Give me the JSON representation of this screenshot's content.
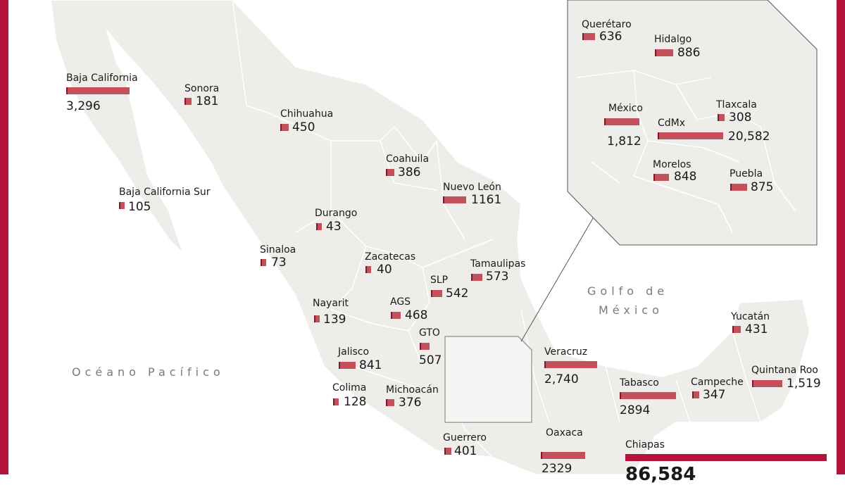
{
  "colors": {
    "frame": "#b5123a",
    "bar": "#c4505c",
    "land": "#efedea",
    "border": "#ffffff"
  },
  "oceans": {
    "pacific": "Océano Pacífico",
    "gulf_line1": "Golfo de",
    "gulf_line2": "México"
  },
  "states": [
    {
      "name": "Baja California",
      "value": "3,296",
      "amount": 3296
    },
    {
      "name": "Sonora",
      "value": "181",
      "amount": 181
    },
    {
      "name": "Chihuahua",
      "value": "450",
      "amount": 450
    },
    {
      "name": "Baja California Sur",
      "value": "105",
      "amount": 105
    },
    {
      "name": "Coahuila",
      "value": "386",
      "amount": 386
    },
    {
      "name": "Nuevo León",
      "value": "1161",
      "amount": 1161
    },
    {
      "name": "Durango",
      "value": "43",
      "amount": 43
    },
    {
      "name": "Sinaloa",
      "value": "73",
      "amount": 73
    },
    {
      "name": "Zacatecas",
      "value": "40",
      "amount": 40
    },
    {
      "name": "Tamaulipas",
      "value": "573",
      "amount": 573
    },
    {
      "name": "SLP",
      "value": "542",
      "amount": 542
    },
    {
      "name": "Nayarit",
      "value": "139",
      "amount": 139
    },
    {
      "name": "AGS",
      "value": "468",
      "amount": 468
    },
    {
      "name": "GTO",
      "value": "507",
      "amount": 507
    },
    {
      "name": "Jalisco",
      "value": "841",
      "amount": 841
    },
    {
      "name": "Colima",
      "value": "128",
      "amount": 128
    },
    {
      "name": "Michoacán",
      "value": "376",
      "amount": 376
    },
    {
      "name": "Guerrero",
      "value": "401",
      "amount": 401
    },
    {
      "name": "Veracruz",
      "value": "2,740",
      "amount": 2740
    },
    {
      "name": "Tabasco",
      "value": "2894",
      "amount": 2894
    },
    {
      "name": "Campeche",
      "value": "347",
      "amount": 347
    },
    {
      "name": "Yucatán",
      "value": "431",
      "amount": 431
    },
    {
      "name": "Quintana Roo",
      "value": "1,519",
      "amount": 1519
    },
    {
      "name": "Oaxaca",
      "value": "2329",
      "amount": 2329
    },
    {
      "name": "Chiapas",
      "value": "86,584",
      "amount": 86584
    }
  ],
  "inset": [
    {
      "name": "Querétaro",
      "value": "636",
      "amount": 636
    },
    {
      "name": "Hidalgo",
      "value": "886",
      "amount": 886
    },
    {
      "name": "México",
      "value": "1,812",
      "amount": 1812
    },
    {
      "name": "Tlaxcala",
      "value": "308",
      "amount": 308
    },
    {
      "name": "CdMx",
      "value": "20,582",
      "amount": 20582
    },
    {
      "name": "Morelos",
      "value": "848",
      "amount": 848
    },
    {
      "name": "Puebla",
      "value": "875",
      "amount": 875
    }
  ]
}
